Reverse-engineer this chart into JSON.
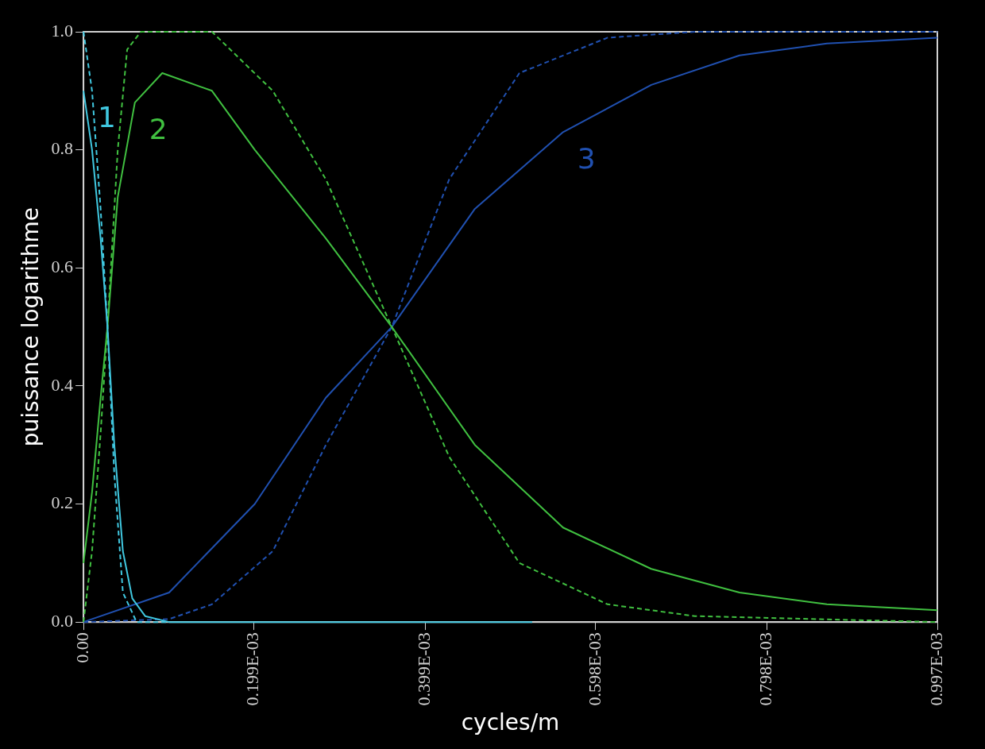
{
  "chart_data": {
    "type": "line",
    "xlabel": "cycles/m",
    "ylabel": "puissance logarithme",
    "xlim": [
      0,
      0.000997
    ],
    "ylim": [
      0,
      1
    ],
    "xticks": [
      {
        "value": 0,
        "label": "0.00"
      },
      {
        "value": 0.000199,
        "label": "0.199E-03"
      },
      {
        "value": 0.000399,
        "label": "0.399E-03"
      },
      {
        "value": 0.000598,
        "label": "0.598E-03"
      },
      {
        "value": 0.000798,
        "label": "0.798E-03"
      },
      {
        "value": 0.000997,
        "label": "0.997E-03"
      }
    ],
    "yticks": [
      {
        "value": 0,
        "label": "0.0"
      },
      {
        "value": 0.2,
        "label": "0.2"
      },
      {
        "value": 0.4,
        "label": "0.4"
      },
      {
        "value": 0.6,
        "label": "0.6"
      },
      {
        "value": 0.8,
        "label": "0.8"
      },
      {
        "value": 1,
        "label": "1.0"
      }
    ],
    "grid": false,
    "legend": false,
    "marker": "none",
    "series": [
      {
        "name": "1",
        "color": "#40c8e0",
        "line_style": "solid",
        "x": [
          0,
          1e-05,
          2e-05,
          2.8e-05,
          3.6e-05,
          4.6e-05,
          5.7e-05,
          7.2e-05,
          0.0001,
          0.000524
        ],
        "values": [
          0.9,
          0.8,
          0.65,
          0.5,
          0.3,
          0.12,
          0.04,
          0.01,
          0,
          0
        ]
      },
      {
        "color": "#40c8e0",
        "line_style": "dashed",
        "x": [
          0,
          1e-05,
          2e-05,
          2.8e-05,
          3.6e-05,
          4.6e-05,
          6.2e-05,
          0.0001
        ],
        "values": [
          1,
          0.9,
          0.7,
          0.5,
          0.25,
          0.05,
          0,
          0
        ]
      },
      {
        "name": "2",
        "color": "#40c040",
        "line_style": "solid",
        "x": [
          0,
          1e-05,
          2e-05,
          2.8e-05,
          4e-05,
          6e-05,
          9.2e-05,
          0.00015,
          0.0002,
          0.000283,
          0.00036,
          0.000457,
          0.00056,
          0.000663,
          0.000766,
          0.000868,
          0.000997
        ],
        "values": [
          0.1,
          0.22,
          0.38,
          0.5,
          0.72,
          0.88,
          0.93,
          0.9,
          0.8,
          0.65,
          0.5,
          0.3,
          0.16,
          0.09,
          0.05,
          0.03,
          0.02
        ]
      },
      {
        "color": "#40c040",
        "line_style": "dashed",
        "x": [
          0,
          1e-05,
          2e-05,
          2.8e-05,
          4e-05,
          5.1e-05,
          6.7e-05,
          0.00015,
          0.000221,
          0.000283,
          0.00036,
          0.000427,
          0.000509,
          0.000612,
          0.000714,
          0.000997
        ],
        "values": [
          0,
          0.12,
          0.32,
          0.5,
          0.8,
          0.97,
          1,
          1,
          0.9,
          0.75,
          0.5,
          0.28,
          0.1,
          0.03,
          0.01,
          0
        ]
      },
      {
        "name": "3",
        "color": "#2050b0",
        "line_style": "solid",
        "x": [
          0,
          0.0001,
          0.0002,
          0.000283,
          0.00036,
          0.000457,
          0.00056,
          0.000663,
          0.000766,
          0.000868,
          0.000997
        ],
        "values": [
          0,
          0.05,
          0.2,
          0.38,
          0.5,
          0.7,
          0.83,
          0.91,
          0.96,
          0.98,
          0.99
        ]
      },
      {
        "color": "#2050b0",
        "line_style": "dashed",
        "x": [
          0,
          0.0001,
          0.00015,
          0.000221,
          0.000283,
          0.00036,
          0.000427,
          0.000509,
          0.000612,
          0.000714,
          0.000997
        ],
        "values": [
          0,
          0.005,
          0.03,
          0.12,
          0.3,
          0.5,
          0.75,
          0.93,
          0.99,
          1,
          1
        ]
      }
    ]
  }
}
